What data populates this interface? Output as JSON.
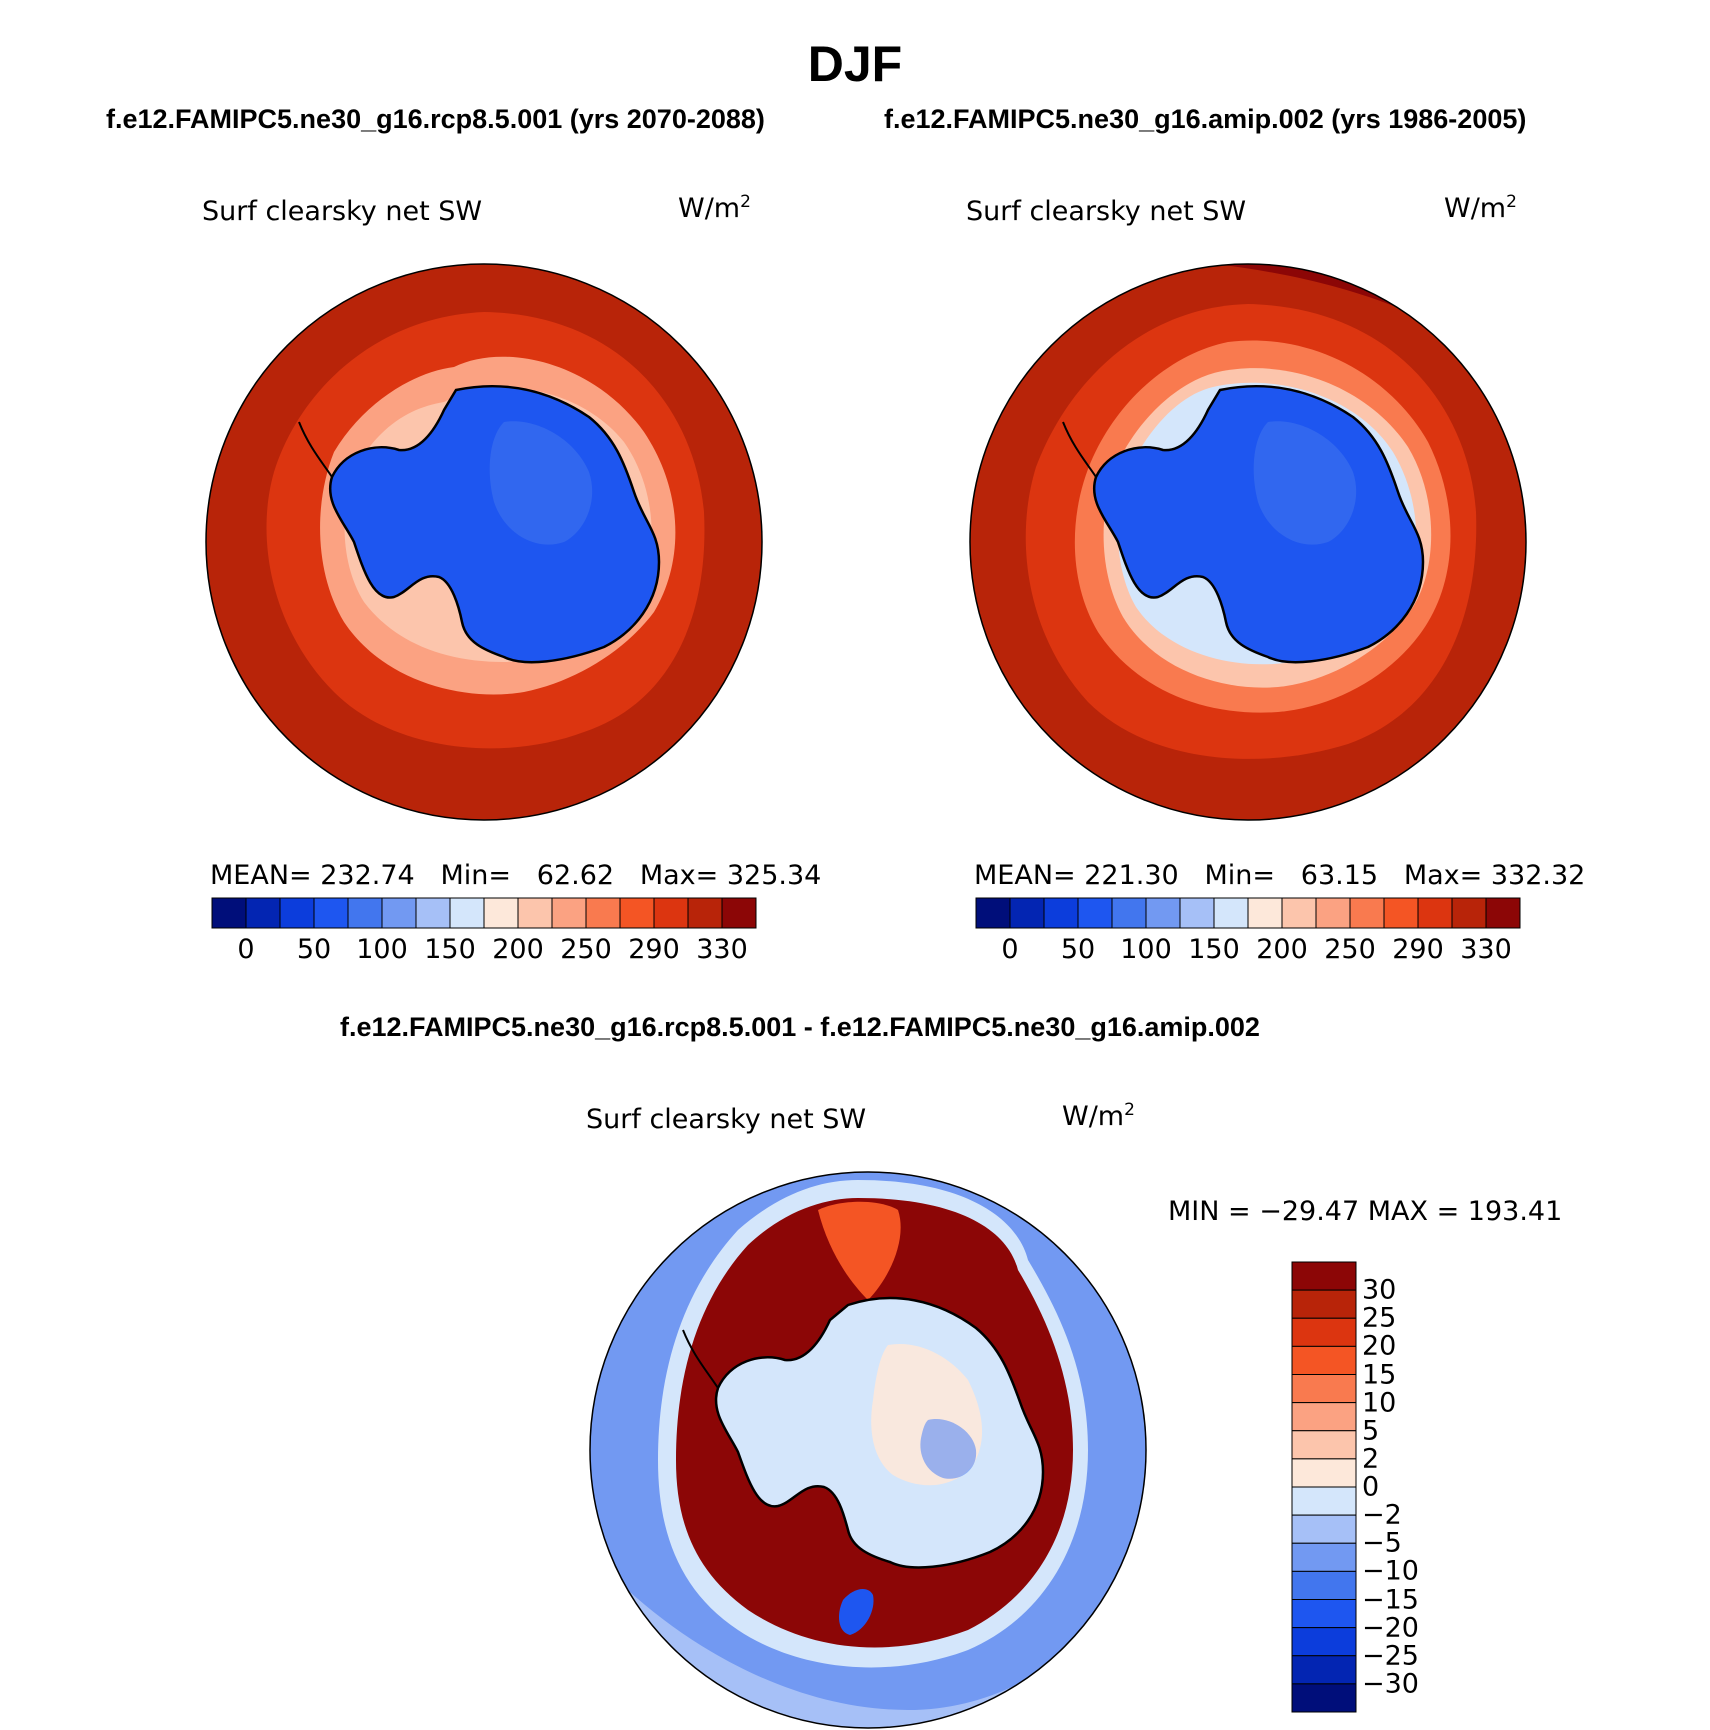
{
  "title": "DJF",
  "panels": [
    {
      "run_label": "f.e12.FAMIPC5.ne30_g16.rcp8.5.001 (yrs 2070-2088)",
      "variable": "Surf clearsky net SW",
      "units_base": "W/m",
      "units_exp": "2",
      "mean_label": "MEAN=",
      "mean": "232.74",
      "min_label": "Min=",
      "min": "62.62",
      "max_label": "Max=",
      "max": "325.34"
    },
    {
      "run_label": "f.e12.FAMIPC5.ne30_g16.amip.002 (yrs 1986-2005)",
      "variable": "Surf clearsky net SW",
      "units_base": "W/m",
      "units_exp": "2",
      "mean_label": "MEAN=",
      "mean": "221.30",
      "min_label": "Min=",
      "min": "63.15",
      "max_label": "Max=",
      "max": "332.32"
    }
  ],
  "diff_panel": {
    "run_label": "f.e12.FAMIPC5.ne30_g16.rcp8.5.001 - f.e12.FAMIPC5.ne30_g16.amip.002",
    "variable": "Surf clearsky net SW",
    "units_base": "W/m",
    "units_exp": "2",
    "minmax": "MIN = −29.47 MAX = 193.41"
  },
  "chart_data": [
    {
      "type": "heatmap",
      "projection": "south-polar-stereographic",
      "variable": "Surf clearsky net SW",
      "units": "W/m2",
      "season": "DJF",
      "case": "f.e12.FAMIPC5.ne30_g16.rcp8.5.001 (yrs 2070-2088)",
      "stats": {
        "mean": 232.74,
        "min": 62.62,
        "max": 325.34
      },
      "colorbar": {
        "orientation": "horizontal",
        "tick_labels": [
          "0",
          "50",
          "100",
          "150",
          "200",
          "250",
          "290",
          "330"
        ],
        "colors": [
          "#000e7a",
          "#0325b2",
          "#0c3ddc",
          "#1e56f0",
          "#4276ee",
          "#7299f2",
          "#a6c0f7",
          "#d4e6fb",
          "#fde8da",
          "#fcc5ac",
          "#fba282",
          "#f97a4f",
          "#f45524",
          "#dc3510",
          "#b82409",
          "#8c0606"
        ]
      }
    },
    {
      "type": "heatmap",
      "projection": "south-polar-stereographic",
      "variable": "Surf clearsky net SW",
      "units": "W/m2",
      "season": "DJF",
      "case": "f.e12.FAMIPC5.ne30_g16.amip.002 (yrs 1986-2005)",
      "stats": {
        "mean": 221.3,
        "min": 63.15,
        "max": 332.32
      },
      "colorbar": {
        "orientation": "horizontal",
        "tick_labels": [
          "0",
          "50",
          "100",
          "150",
          "200",
          "250",
          "290",
          "330"
        ],
        "colors": [
          "#000e7a",
          "#0325b2",
          "#0c3ddc",
          "#1e56f0",
          "#4276ee",
          "#7299f2",
          "#a6c0f7",
          "#d4e6fb",
          "#fde8da",
          "#fcc5ac",
          "#fba282",
          "#f97a4f",
          "#f45524",
          "#dc3510",
          "#b82409",
          "#8c0606"
        ]
      }
    },
    {
      "type": "heatmap",
      "projection": "south-polar-stereographic",
      "variable": "Surf clearsky net SW",
      "units": "W/m2",
      "case": "f.e12.FAMIPC5.ne30_g16.rcp8.5.001 - f.e12.FAMIPC5.ne30_g16.amip.002",
      "stats": {
        "min": -29.47,
        "max": 193.41
      },
      "colorbar": {
        "orientation": "vertical",
        "tick_labels": [
          "30",
          "25",
          "20",
          "15",
          "10",
          "5",
          "2",
          "0",
          "−2",
          "−5",
          "−10",
          "−15",
          "−20",
          "−25",
          "−30"
        ],
        "colors_top_to_bottom": [
          "#8c0606",
          "#b82409",
          "#dc3510",
          "#f45524",
          "#f97a4f",
          "#fba282",
          "#fcc5ac",
          "#fde8da",
          "#d4e6fb",
          "#a6c0f7",
          "#7299f2",
          "#4276ee",
          "#1e56f0",
          "#0c3ddc",
          "#0325b2",
          "#000e7a"
        ]
      }
    }
  ]
}
